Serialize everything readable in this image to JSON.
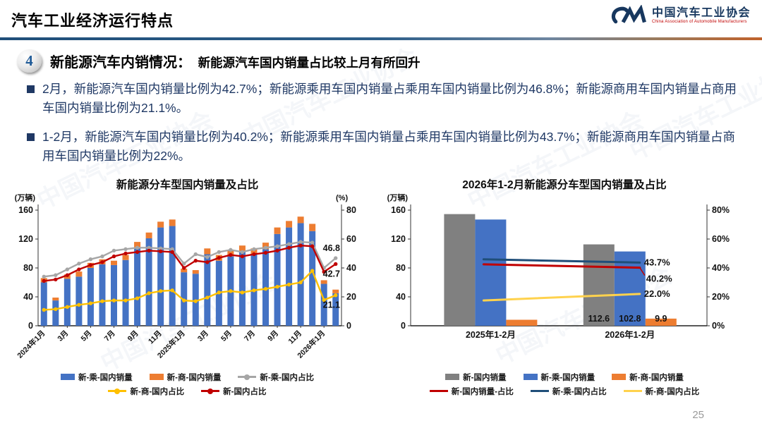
{
  "header": {
    "title": "汽车工业经济运行特点",
    "logo_cn": "中国汽车工业协会",
    "logo_en": "China Association of Automobile Manufacturers"
  },
  "watermark": "中国汽车工业协会",
  "section": {
    "number": "4",
    "heading": "新能源汽车内销情况：",
    "subheading": "新能源汽车国内销量占比较上月有所回升"
  },
  "bullets": [
    "2月，新能源汽车国内销量比例为42.7%；新能源乘用车国内销量占乘用车国内销量比例为46.8%；新能源商用车国内销量占商用车国内销量比例为21.1%。",
    "1-2月，新能源汽车国内销量比例为40.2%；新能源乘用车国内销量占乘用车国内销量比例为43.7%；新能源商用车国内销量占商用车国内销量比例为22%。"
  ],
  "footer": {
    "page_number": "25"
  },
  "colors": {
    "blue": "#4472C4",
    "orange": "#ED7D31",
    "gray": "#A6A6A6",
    "red": "#C00000",
    "yellow": "#FFC000",
    "darkblue": "#1F4E79",
    "grayBar": "#808080",
    "yellow2": "#FFD24D"
  },
  "chart_data": [
    {
      "type": "bar",
      "subtype": "stacked bars + percentage lines, dual axis",
      "title": "新能源分车型国内销量及占比",
      "unit_left": "(万辆)",
      "unit_right": "(%)",
      "ylim_left": [
        0,
        160
      ],
      "yticks_left": [
        0,
        40,
        80,
        120,
        160
      ],
      "ylim_right": [
        0,
        80
      ],
      "yticks_right": [
        0,
        20,
        40,
        60,
        80
      ],
      "ytick_suffix": "",
      "categories": [
        "2024年1月",
        "2024年2月",
        "2024年3月",
        "2024年4月",
        "2024年5月",
        "2024年6月",
        "2024年7月",
        "2024年8月",
        "2024年9月",
        "2024年10月",
        "2024年11月",
        "2024年12月",
        "2025年1月",
        "2025年2月",
        "2025年3月",
        "2025年4月",
        "2025年5月",
        "2025年6月",
        "2025年7月",
        "2025年8月",
        "2025年9月",
        "2025年10月",
        "2025年11月",
        "2025年12月",
        "2026年1月",
        "2026年2月"
      ],
      "xtick_labels": [
        {
          "index": 0,
          "label": "2024年1月"
        },
        {
          "index": 2,
          "label": "3月"
        },
        {
          "index": 4,
          "label": "5月"
        },
        {
          "index": 6,
          "label": "7月"
        },
        {
          "index": 8,
          "label": "9月"
        },
        {
          "index": 10,
          "label": "11月"
        },
        {
          "index": 12,
          "label": "2025年1月"
        },
        {
          "index": 14,
          "label": "3月"
        },
        {
          "index": 16,
          "label": "5月"
        },
        {
          "index": 18,
          "label": "7月"
        },
        {
          "index": 20,
          "label": "9月"
        },
        {
          "index": 22,
          "label": "11月"
        },
        {
          "index": 24,
          "label": "2026年1月"
        }
      ],
      "bar_series": [
        {
          "name": "新-乘-国内销量",
          "color_key": "blue",
          "values": [
            60,
            35,
            65,
            68,
            80,
            85,
            84,
            91,
            108,
            121,
            136,
            138,
            74,
            72,
            99,
            90,
            96,
            102,
            99,
            106,
            127,
            136,
            142,
            131,
            58,
            45
          ]
        },
        {
          "name": "新-商-国内销量",
          "color_key": "orange",
          "stacked": true,
          "values": [
            6,
            4,
            6,
            7,
            7,
            7,
            6,
            7,
            8,
            8,
            8,
            9,
            5,
            5,
            8,
            8,
            8,
            9,
            8,
            9,
            9,
            9,
            9,
            10,
            5,
            5
          ]
        }
      ],
      "line_series": [
        {
          "name": "新-乘-国内占比",
          "color_key": "gray",
          "values": [
            34,
            35,
            39,
            43,
            46,
            48,
            52,
            53,
            54,
            54,
            53.5,
            53,
            43,
            49.5,
            47.5,
            51,
            52.5,
            51,
            53,
            54,
            55,
            56.5,
            58,
            57.5,
            40,
            46.8
          ]
        },
        {
          "name": "新-商-国内占比",
          "color_key": "yellow",
          "values": [
            11,
            11.5,
            13,
            14.5,
            15.5,
            17,
            17.5,
            17.5,
            19,
            22.5,
            24,
            24.5,
            17.5,
            17,
            19.5,
            23,
            24,
            23,
            24.5,
            25.5,
            27,
            28.5,
            30,
            38,
            17.8,
            21.1
          ]
        },
        {
          "name": "新-国内占比",
          "color_key": "red",
          "values": [
            31,
            32,
            35,
            39,
            42,
            44,
            48,
            50,
            51,
            52,
            51.5,
            51,
            40,
            45,
            44,
            47,
            49,
            48,
            49.5,
            50.5,
            52,
            54,
            55.5,
            55,
            37.3,
            42.7
          ]
        }
      ],
      "annotations": [
        {
          "series": "新-乘-国内占比",
          "text": "46.8",
          "pos": "above"
        },
        {
          "series": "新-国内占比",
          "text": "42.7",
          "pos": "below"
        },
        {
          "series": "新-商-国内占比",
          "text": "21.1",
          "pos": "below"
        }
      ],
      "legend_rows": [
        [
          {
            "label": "新-乘-国内销量",
            "type": "bar",
            "color_key": "blue"
          },
          {
            "label": "新-商-国内销量",
            "type": "bar",
            "color_key": "orange"
          },
          {
            "label": "新-乘-国内占比",
            "type": "line",
            "marker": true,
            "color_key": "gray"
          }
        ],
        [
          {
            "label": "新-商-国内占比",
            "type": "line",
            "marker": true,
            "color_key": "yellow"
          },
          {
            "label": "新-国内占比",
            "type": "line",
            "marker": true,
            "color_key": "red"
          }
        ]
      ],
      "legend_position": "bottom",
      "grid": false
    },
    {
      "type": "bar",
      "subtype": "grouped bars + percentage lines, dual axis",
      "title": "2026年1-2月新能源分车型国内销量及占比",
      "unit_left": "(万辆)",
      "unit_right": "",
      "ylim_left": [
        0,
        160
      ],
      "yticks_left": [
        0,
        40,
        80,
        120,
        160
      ],
      "ylim_right": [
        0,
        80
      ],
      "yticks_right": [
        0,
        20,
        40,
        60,
        80
      ],
      "ytick_suffix": "%",
      "categories": [
        "2025年1-2月",
        "2026年1-2月"
      ],
      "bar_series": [
        {
          "name": "新-国内销量",
          "color_key": "grayBar",
          "values": [
            154.5,
            112.6
          ],
          "labels": [
            "",
            "112.6"
          ]
        },
        {
          "name": "新-乘-国内销量",
          "color_key": "blue",
          "values": [
            147,
            102.8
          ],
          "labels": [
            "",
            "102.8"
          ]
        },
        {
          "name": "新-商-国内销量",
          "color_key": "orange",
          "values": [
            8.3,
            9.9
          ],
          "labels": [
            "",
            "9.9"
          ]
        }
      ],
      "line_series": [
        {
          "name": "新-国内销量-占比",
          "color_key": "red",
          "values": [
            42.5,
            40.2
          ],
          "label": "40.2%"
        },
        {
          "name": "新-乘-国内占比",
          "color_key": "darkblue",
          "values": [
            46,
            43.7
          ],
          "label": "43.7%"
        },
        {
          "name": "新-商-国内占比",
          "color_key": "yellow2",
          "values": [
            17.5,
            22
          ],
          "label": "22.0%"
        }
      ],
      "legend_rows": [
        [
          {
            "label": "新-国内销量",
            "type": "bar",
            "color_key": "grayBar"
          },
          {
            "label": "新-乘-国内销量",
            "type": "bar",
            "color_key": "blue"
          },
          {
            "label": "新-商-国内销量",
            "type": "bar",
            "color_key": "orange"
          }
        ],
        [
          {
            "label": "新-国内销量-占比",
            "type": "line",
            "marker": false,
            "color_key": "red"
          },
          {
            "label": "新-乘-国内占比",
            "type": "line",
            "marker": false,
            "color_key": "darkblue"
          },
          {
            "label": "新-商-国内占比",
            "type": "line",
            "marker": false,
            "color_key": "yellow2"
          }
        ]
      ],
      "legend_position": "bottom",
      "grid": false
    }
  ]
}
